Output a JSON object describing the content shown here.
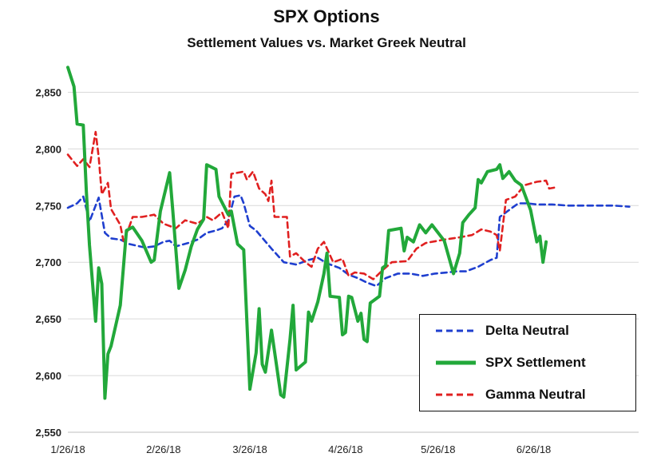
{
  "title": "SPX Options",
  "subtitle": "Settlement Values vs. Market Greek Neutral",
  "chart_data": {
    "type": "line",
    "title": "SPX Options",
    "subtitle": "Settlement Values vs. Market Greek Neutral",
    "xlabel": "",
    "ylabel": "",
    "x_ticks": [
      "1/26/18",
      "2/26/18",
      "3/26/18",
      "4/26/18",
      "5/26/18",
      "6/26/18"
    ],
    "y_ticks": [
      "2,550",
      "2,600",
      "2,650",
      "2,700",
      "2,750",
      "2,800",
      "2,850"
    ],
    "xlim": [
      "2018-01-26",
      "2018-07-30"
    ],
    "ylim": [
      2550,
      2875
    ],
    "grid": "horizontal",
    "legend_position": "bottom-right",
    "series": [
      {
        "name": "Delta Neutral",
        "color": "#1f3fcf",
        "style": "dashed",
        "points": [
          [
            "2018-01-26",
            2748
          ],
          [
            "2018-01-29",
            2752
          ],
          [
            "2018-01-31",
            2758
          ],
          [
            "2018-02-02",
            2736
          ],
          [
            "2018-02-05",
            2757
          ],
          [
            "2018-02-07",
            2726
          ],
          [
            "2018-02-09",
            2721
          ],
          [
            "2018-02-12",
            2720
          ],
          [
            "2018-02-15",
            2716
          ],
          [
            "2018-02-20",
            2713
          ],
          [
            "2018-02-23",
            2714
          ],
          [
            "2018-02-26",
            2718
          ],
          [
            "2018-02-28",
            2719
          ],
          [
            "2018-03-02",
            2714
          ],
          [
            "2018-03-06",
            2717
          ],
          [
            "2018-03-09",
            2720
          ],
          [
            "2018-03-12",
            2726
          ],
          [
            "2018-03-15",
            2728
          ],
          [
            "2018-03-17",
            2730
          ],
          [
            "2018-03-19",
            2737
          ],
          [
            "2018-03-21",
            2758
          ],
          [
            "2018-03-23",
            2759
          ],
          [
            "2018-03-24",
            2752
          ],
          [
            "2018-03-26",
            2732
          ],
          [
            "2018-03-28",
            2728
          ],
          [
            "2018-04-02",
            2712
          ],
          [
            "2018-04-06",
            2700
          ],
          [
            "2018-04-10",
            2698
          ],
          [
            "2018-04-14",
            2702
          ],
          [
            "2018-04-17",
            2704
          ],
          [
            "2018-04-20",
            2699
          ],
          [
            "2018-04-24",
            2695
          ],
          [
            "2018-04-27",
            2689
          ],
          [
            "2018-04-30",
            2686
          ],
          [
            "2018-05-03",
            2682
          ],
          [
            "2018-05-06",
            2679
          ],
          [
            "2018-05-09",
            2686
          ],
          [
            "2018-05-13",
            2690
          ],
          [
            "2018-05-17",
            2690
          ],
          [
            "2018-05-21",
            2688
          ],
          [
            "2018-05-25",
            2690
          ],
          [
            "2018-05-29",
            2691
          ],
          [
            "2018-06-01",
            2692
          ],
          [
            "2018-06-04",
            2692
          ],
          [
            "2018-06-08",
            2696
          ],
          [
            "2018-06-12",
            2702
          ],
          [
            "2018-06-14",
            2704
          ],
          [
            "2018-06-15",
            2740
          ],
          [
            "2018-06-17",
            2744
          ],
          [
            "2018-06-19",
            2748
          ],
          [
            "2018-06-21",
            2752
          ],
          [
            "2018-06-24",
            2752
          ],
          [
            "2018-06-27",
            2751
          ],
          [
            "2018-07-02",
            2751
          ],
          [
            "2018-07-07",
            2750
          ],
          [
            "2018-07-15",
            2750
          ],
          [
            "2018-07-22",
            2750
          ],
          [
            "2018-07-27",
            2749
          ]
        ]
      },
      {
        "name": "SPX Settlement",
        "color": "#22a83a",
        "style": "solid",
        "points": [
          [
            "2018-01-26",
            2872
          ],
          [
            "2018-01-28",
            2855
          ],
          [
            "2018-01-29",
            2822
          ],
          [
            "2018-01-31",
            2821
          ],
          [
            "2018-02-01",
            2762
          ],
          [
            "2018-02-02",
            2715
          ],
          [
            "2018-02-04",
            2648
          ],
          [
            "2018-02-05",
            2695
          ],
          [
            "2018-02-06",
            2681
          ],
          [
            "2018-02-07",
            2580
          ],
          [
            "2018-02-08",
            2619
          ],
          [
            "2018-02-09",
            2626
          ],
          [
            "2018-02-12",
            2662
          ],
          [
            "2018-02-14",
            2728
          ],
          [
            "2018-02-16",
            2731
          ],
          [
            "2018-02-19",
            2719
          ],
          [
            "2018-02-22",
            2700
          ],
          [
            "2018-02-23",
            2702
          ],
          [
            "2018-02-25",
            2745
          ],
          [
            "2018-02-28",
            2779
          ],
          [
            "2018-03-01",
            2746
          ],
          [
            "2018-03-03",
            2677
          ],
          [
            "2018-03-05",
            2693
          ],
          [
            "2018-03-07",
            2714
          ],
          [
            "2018-03-09",
            2729
          ],
          [
            "2018-03-11",
            2738
          ],
          [
            "2018-03-12",
            2786
          ],
          [
            "2018-03-15",
            2782
          ],
          [
            "2018-03-16",
            2758
          ],
          [
            "2018-03-19",
            2742
          ],
          [
            "2018-03-20",
            2745
          ],
          [
            "2018-03-22",
            2716
          ],
          [
            "2018-03-24",
            2711
          ],
          [
            "2018-03-26",
            2588
          ],
          [
            "2018-03-28",
            2620
          ],
          [
            "2018-03-29",
            2659
          ],
          [
            "2018-03-30",
            2610
          ],
          [
            "2018-03-31",
            2603
          ],
          [
            "2018-04-02",
            2640
          ],
          [
            "2018-04-05",
            2583
          ],
          [
            "2018-04-06",
            2581
          ],
          [
            "2018-04-08",
            2632
          ],
          [
            "2018-04-09",
            2662
          ],
          [
            "2018-04-10",
            2605
          ],
          [
            "2018-04-13",
            2612
          ],
          [
            "2018-04-14",
            2656
          ],
          [
            "2018-04-15",
            2648
          ],
          [
            "2018-04-17",
            2665
          ],
          [
            "2018-04-19",
            2690
          ],
          [
            "2018-04-20",
            2708
          ],
          [
            "2018-04-21",
            2670
          ],
          [
            "2018-04-24",
            2669
          ],
          [
            "2018-04-25",
            2636
          ],
          [
            "2018-04-26",
            2638
          ],
          [
            "2018-04-27",
            2670
          ],
          [
            "2018-04-28",
            2669
          ],
          [
            "2018-04-30",
            2648
          ],
          [
            "2018-05-01",
            2655
          ],
          [
            "2018-05-02",
            2632
          ],
          [
            "2018-05-03",
            2630
          ],
          [
            "2018-05-04",
            2664
          ],
          [
            "2018-05-07",
            2670
          ],
          [
            "2018-05-08",
            2695
          ],
          [
            "2018-05-09",
            2697
          ],
          [
            "2018-05-10",
            2728
          ],
          [
            "2018-05-14",
            2730
          ],
          [
            "2018-05-15",
            2710
          ],
          [
            "2018-05-16",
            2722
          ],
          [
            "2018-05-18",
            2718
          ],
          [
            "2018-05-20",
            2733
          ],
          [
            "2018-05-22",
            2726
          ],
          [
            "2018-05-24",
            2733
          ],
          [
            "2018-05-28",
            2719
          ],
          [
            "2018-05-31",
            2690
          ],
          [
            "2018-06-02",
            2708
          ],
          [
            "2018-06-03",
            2735
          ],
          [
            "2018-06-05",
            2742
          ],
          [
            "2018-06-07",
            2748
          ],
          [
            "2018-06-08",
            2773
          ],
          [
            "2018-06-09",
            2770
          ],
          [
            "2018-06-11",
            2780
          ],
          [
            "2018-06-14",
            2782
          ],
          [
            "2018-06-15",
            2786
          ],
          [
            "2018-06-16",
            2774
          ],
          [
            "2018-06-18",
            2780
          ],
          [
            "2018-06-20",
            2772
          ],
          [
            "2018-06-22",
            2768
          ],
          [
            "2018-06-25",
            2746
          ],
          [
            "2018-06-27",
            2718
          ],
          [
            "2018-06-28",
            2723
          ],
          [
            "2018-06-29",
            2700
          ],
          [
            "2018-06-30",
            2718
          ]
        ]
      },
      {
        "name": "Gamma Neutral",
        "color": "#e02020",
        "style": "dashed",
        "points": [
          [
            "2018-01-26",
            2795
          ],
          [
            "2018-01-29",
            2785
          ],
          [
            "2018-01-31",
            2791
          ],
          [
            "2018-02-02",
            2784
          ],
          [
            "2018-02-04",
            2815
          ],
          [
            "2018-02-05",
            2793
          ],
          [
            "2018-02-06",
            2760
          ],
          [
            "2018-02-08",
            2770
          ],
          [
            "2018-02-09",
            2747
          ],
          [
            "2018-02-12",
            2733
          ],
          [
            "2018-02-13",
            2719
          ],
          [
            "2018-02-15",
            2732
          ],
          [
            "2018-02-16",
            2740
          ],
          [
            "2018-02-19",
            2740
          ],
          [
            "2018-02-23",
            2742
          ],
          [
            "2018-02-26",
            2734
          ],
          [
            "2018-03-02",
            2730
          ],
          [
            "2018-03-05",
            2737
          ],
          [
            "2018-03-09",
            2734
          ],
          [
            "2018-03-12",
            2740
          ],
          [
            "2018-03-14",
            2737
          ],
          [
            "2018-03-17",
            2744
          ],
          [
            "2018-03-19",
            2730
          ],
          [
            "2018-03-20",
            2778
          ],
          [
            "2018-03-24",
            2780
          ],
          [
            "2018-03-25",
            2773
          ],
          [
            "2018-03-27",
            2780
          ],
          [
            "2018-03-29",
            2765
          ],
          [
            "2018-03-31",
            2760
          ],
          [
            "2018-04-01",
            2754
          ],
          [
            "2018-04-02",
            2772
          ],
          [
            "2018-04-03",
            2740
          ],
          [
            "2018-04-07",
            2740
          ],
          [
            "2018-04-08",
            2705
          ],
          [
            "2018-04-10",
            2708
          ],
          [
            "2018-04-13",
            2700
          ],
          [
            "2018-04-15",
            2696
          ],
          [
            "2018-04-17",
            2712
          ],
          [
            "2018-04-19",
            2718
          ],
          [
            "2018-04-22",
            2700
          ],
          [
            "2018-04-25",
            2703
          ],
          [
            "2018-04-27",
            2688
          ],
          [
            "2018-04-29",
            2691
          ],
          [
            "2018-05-02",
            2690
          ],
          [
            "2018-05-05",
            2685
          ],
          [
            "2018-05-08",
            2693
          ],
          [
            "2018-05-11",
            2700
          ],
          [
            "2018-05-16",
            2701
          ],
          [
            "2018-05-19",
            2712
          ],
          [
            "2018-05-22",
            2717
          ],
          [
            "2018-05-28",
            2720
          ],
          [
            "2018-06-02",
            2722
          ],
          [
            "2018-06-06",
            2724
          ],
          [
            "2018-06-09",
            2729
          ],
          [
            "2018-06-12",
            2727
          ],
          [
            "2018-06-14",
            2724
          ],
          [
            "2018-06-15",
            2710
          ],
          [
            "2018-06-17",
            2755
          ],
          [
            "2018-06-20",
            2758
          ],
          [
            "2018-06-23",
            2768
          ],
          [
            "2018-06-27",
            2771
          ],
          [
            "2018-06-30",
            2772
          ],
          [
            "2018-07-01",
            2765
          ],
          [
            "2018-07-03",
            2766
          ]
        ]
      }
    ]
  }
}
